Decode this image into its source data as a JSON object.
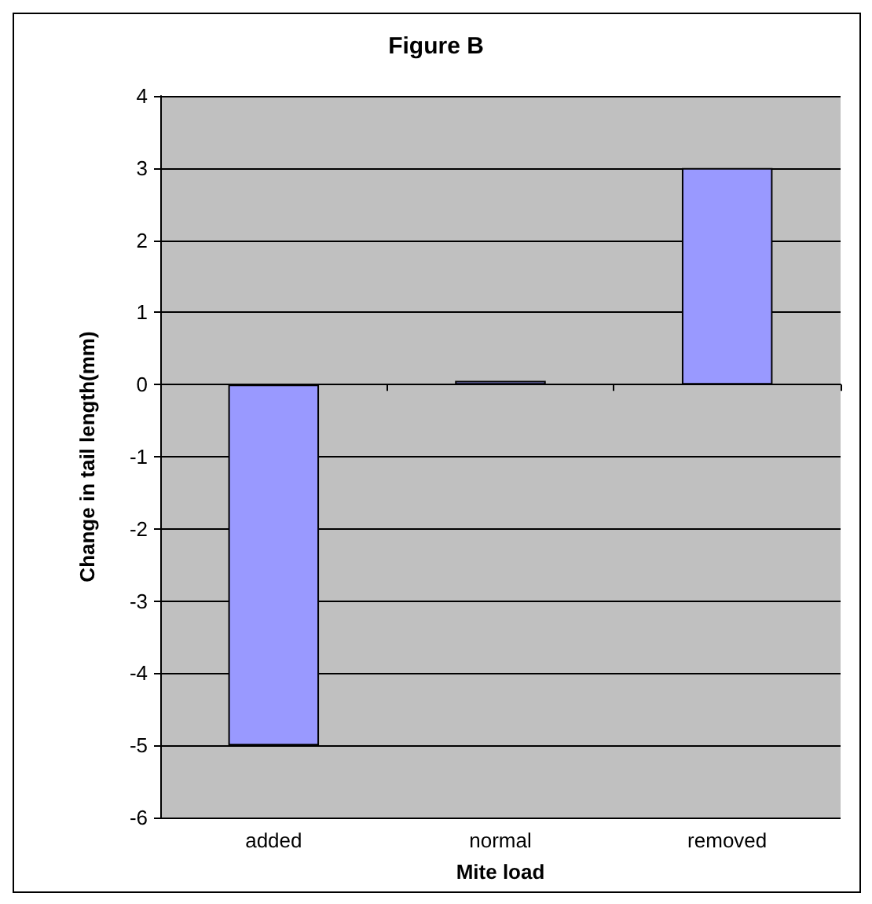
{
  "chart_data": {
    "type": "bar",
    "title": "Figure B",
    "xlabel": "Mite load",
    "ylabel": "Change in tail length(mm)",
    "categories": [
      "added",
      "normal",
      "removed"
    ],
    "values": [
      -5,
      0.05,
      3
    ],
    "color": "#9999ff",
    "ylim": [
      -6,
      4
    ],
    "yticks": [
      -6,
      -5,
      -4,
      -3,
      -2,
      -1,
      0,
      1,
      2,
      3,
      4
    ],
    "grid": "y"
  }
}
